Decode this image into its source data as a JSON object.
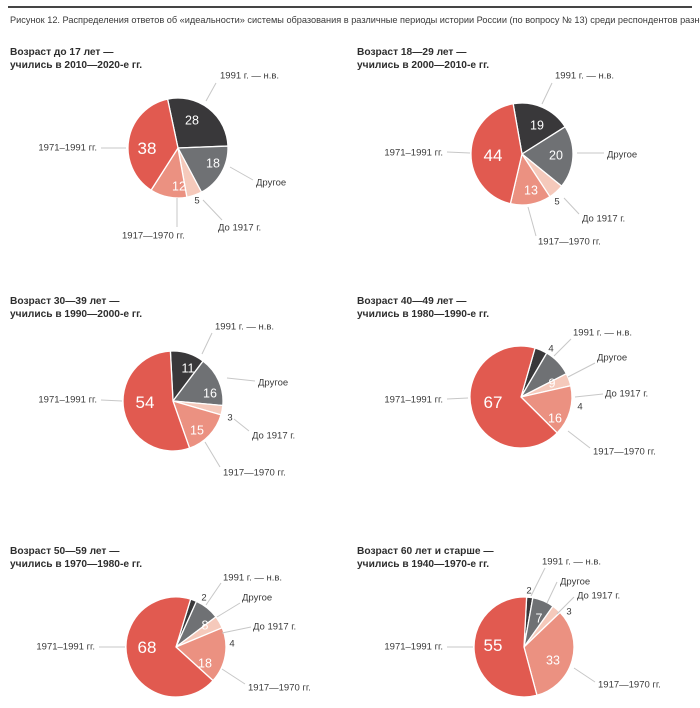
{
  "figure": {
    "caption": "Рисунок 12. Распределения ответов об «идеальности» системы образования в различные периоды истории России (по вопросу № 13) среди респондентов разного возраста, %."
  },
  "colors": {
    "slice_1991_present": "#39383A",
    "slice_other": "#6F7174",
    "slice_before_1917": "#F5C9BB",
    "slice_1917_1970": "#EB9181",
    "slice_1971_1991": "#E15A50",
    "leader_line": "#C7C7C7",
    "label_text": "#3A3A3A",
    "inside_value_text": "#FFFFFF",
    "title_text": "#2E2E2E",
    "rule": "#454545"
  },
  "chart_data": [
    {
      "type": "pie",
      "title_lines": [
        "Возраст до 17 лет —",
        "учились в 2010—2020-е гг."
      ],
      "categories": [
        "1991 г. — н.в.",
        "Другое",
        "До 1917 г.",
        "1917—1970 гг.",
        "1971–1991 гг."
      ],
      "values": [
        28,
        18,
        5,
        12,
        38
      ]
    },
    {
      "type": "pie",
      "title_lines": [
        "Возраст 18—29 лет —",
        "учились в 2000—2010-е гг."
      ],
      "categories": [
        "1991 г. — н.в.",
        "Другое",
        "До 1917 г.",
        "1917—1970 гг.",
        "1971–1991 гг."
      ],
      "values": [
        19,
        20,
        5,
        13,
        44
      ]
    },
    {
      "type": "pie",
      "title_lines": [
        "Возраст 30—39 лет —",
        "учились в 1990—2000-е гг."
      ],
      "categories": [
        "1991 г. — н.в.",
        "Другое",
        "До 1917 г.",
        "1917—1970 гг.",
        "1971–1991 гг."
      ],
      "values": [
        11,
        16,
        3,
        15,
        54
      ]
    },
    {
      "type": "pie",
      "title_lines": [
        "Возраст 40—49 лет —",
        "учились в 1980—1990-е гг."
      ],
      "categories": [
        "1991 г. — н.в.",
        "Другое",
        "До 1917 г.",
        "1917—1970 гг.",
        "1971–1991 гг."
      ],
      "values": [
        4,
        9,
        4,
        16,
        67
      ]
    },
    {
      "type": "pie",
      "title_lines": [
        "Возраст 50—59 лет —",
        "учились в 1970—1980-е гг."
      ],
      "categories": [
        "1991 г. — н.в.",
        "Другое",
        "До 1917 г.",
        "1917—1970 гг.",
        "1971–1991 гг."
      ],
      "values": [
        2,
        8,
        4,
        18,
        68
      ]
    },
    {
      "type": "pie",
      "title_lines": [
        "Возраст 60 лет и старше —",
        "учились в 1940—1970-е гг."
      ],
      "categories": [
        "1991 г. — н.в.",
        "Другое",
        "До 1917 г.",
        "1917—1970 гг.",
        "1971–1991 гг."
      ],
      "values": [
        2,
        7,
        3,
        33,
        55
      ]
    }
  ]
}
